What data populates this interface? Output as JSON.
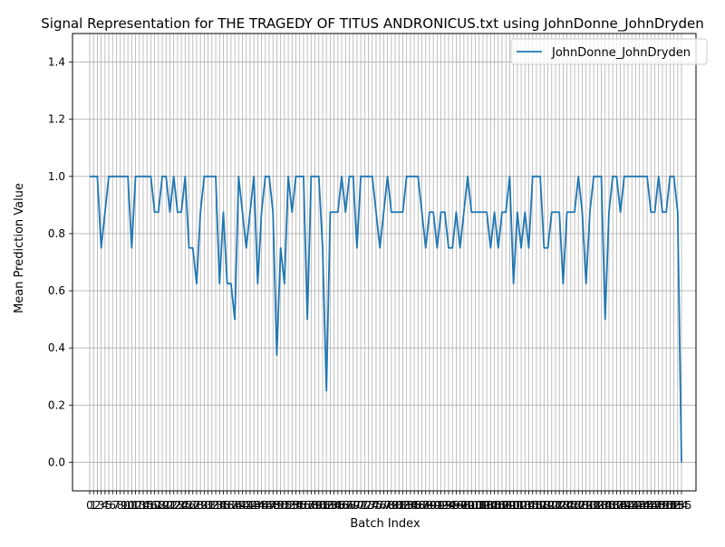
{
  "chart_data": {
    "type": "line",
    "title": "Signal Representation for THE TRAGEDY OF TITUS ANDRONICUS.txt using JohnDonne_JohnDryden",
    "xlabel": "Batch Index",
    "ylabel": "Mean Prediction Value",
    "ylim": [
      -0.1,
      1.5
    ],
    "yticks": [
      "0.0",
      "0.2",
      "0.4",
      "0.6",
      "0.8",
      "1.0",
      "1.2",
      "1.4"
    ],
    "grid": true,
    "legend_position": "top-right",
    "line_color": "#1f77b4",
    "series": [
      {
        "name": "JohnDonne_JohnDryden",
        "values": [
          1.0,
          1.0,
          1.0,
          0.75,
          0.875,
          1.0,
          1.0,
          1.0,
          1.0,
          1.0,
          1.0,
          0.75,
          1.0,
          1.0,
          1.0,
          1.0,
          1.0,
          0.875,
          0.875,
          1.0,
          1.0,
          0.875,
          1.0,
          0.875,
          0.875,
          1.0,
          0.75,
          0.75,
          0.625,
          0.875,
          1.0,
          1.0,
          1.0,
          1.0,
          0.625,
          0.875,
          0.625,
          0.625,
          0.5,
          1.0,
          0.875,
          0.75,
          0.875,
          1.0,
          0.625,
          0.875,
          1.0,
          1.0,
          0.875,
          0.375,
          0.75,
          0.625,
          1.0,
          0.875,
          1.0,
          1.0,
          1.0,
          0.5,
          1.0,
          1.0,
          1.0,
          0.75,
          0.25,
          0.875,
          0.875,
          0.875,
          1.0,
          0.875,
          1.0,
          1.0,
          0.75,
          1.0,
          1.0,
          1.0,
          1.0,
          0.875,
          0.75,
          0.875,
          1.0,
          0.875,
          0.875,
          0.875,
          0.875,
          1.0,
          1.0,
          1.0,
          1.0,
          0.875,
          0.75,
          0.875,
          0.875,
          0.75,
          0.875,
          0.875,
          0.75,
          0.75,
          0.875,
          0.75,
          0.875,
          1.0,
          0.875,
          0.875,
          0.875,
          0.875,
          0.875,
          0.75,
          0.875,
          0.75,
          0.875,
          0.875,
          1.0,
          0.625,
          0.875,
          0.75,
          0.875,
          0.75,
          1.0,
          1.0,
          1.0,
          0.75,
          0.75,
          0.875,
          0.875,
          0.875,
          0.625,
          0.875,
          0.875,
          0.875,
          1.0,
          0.875,
          0.625,
          0.875,
          1.0,
          1.0,
          1.0,
          0.5,
          0.875,
          1.0,
          1.0,
          0.875,
          1.0,
          1.0,
          1.0,
          1.0,
          1.0,
          1.0,
          1.0,
          0.875,
          0.875,
          1.0,
          0.875,
          0.875,
          1.0,
          1.0,
          0.875,
          0.0
        ]
      }
    ]
  }
}
